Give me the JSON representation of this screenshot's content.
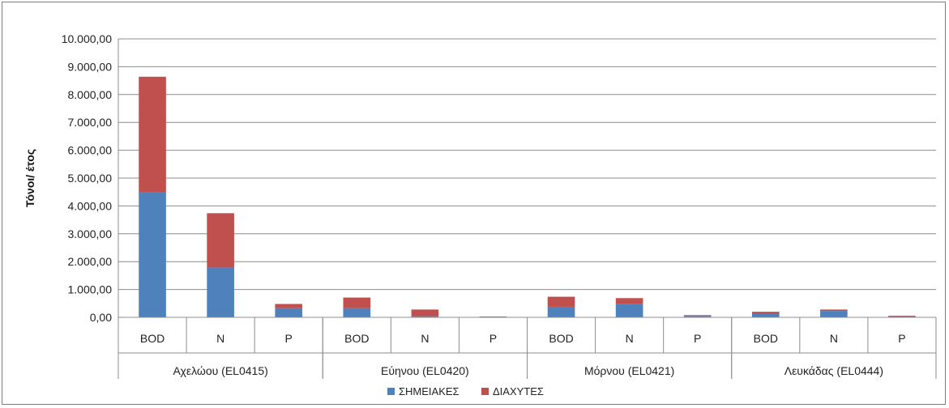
{
  "chart_data": {
    "type": "bar",
    "stacked": true,
    "title": "",
    "xlabel": "",
    "ylabel": "Τόνοι/ έτος",
    "ylim": [
      0,
      10000
    ],
    "ytick_step": 1000,
    "ytick_labels": [
      "0,00",
      "1.000,00",
      "2.000,00",
      "3.000,00",
      "4.000,00",
      "5.000,00",
      "6.000,00",
      "7.000,00",
      "8.000,00",
      "9.000,00",
      "10.000,00"
    ],
    "groups": [
      {
        "label": "Αχελώου (EL0415)",
        "categories": [
          "BOD",
          "N",
          "P"
        ]
      },
      {
        "label": "Εύηνου (EL0420)",
        "categories": [
          "BOD",
          "N",
          "P"
        ]
      },
      {
        "label": "Μόρνου (EL0421)",
        "categories": [
          "BOD",
          "N",
          "P"
        ]
      },
      {
        "label": "Λευκάδας (EL0444)",
        "categories": [
          "BOD",
          "N",
          "P"
        ]
      }
    ],
    "series": [
      {
        "name": "ΣΗΜΕΙΑΚΕΣ",
        "color": "#4f81bd",
        "values": [
          4480,
          1790,
          330,
          330,
          40,
          10,
          380,
          490,
          50,
          130,
          230,
          40
        ]
      },
      {
        "name": "ΔΙΑΧΥΤΕΣ",
        "color": "#c0504d",
        "values": [
          4160,
          1950,
          150,
          380,
          240,
          20,
          360,
          200,
          30,
          70,
          50,
          20
        ]
      }
    ],
    "grid": true,
    "legend": "bottom"
  }
}
